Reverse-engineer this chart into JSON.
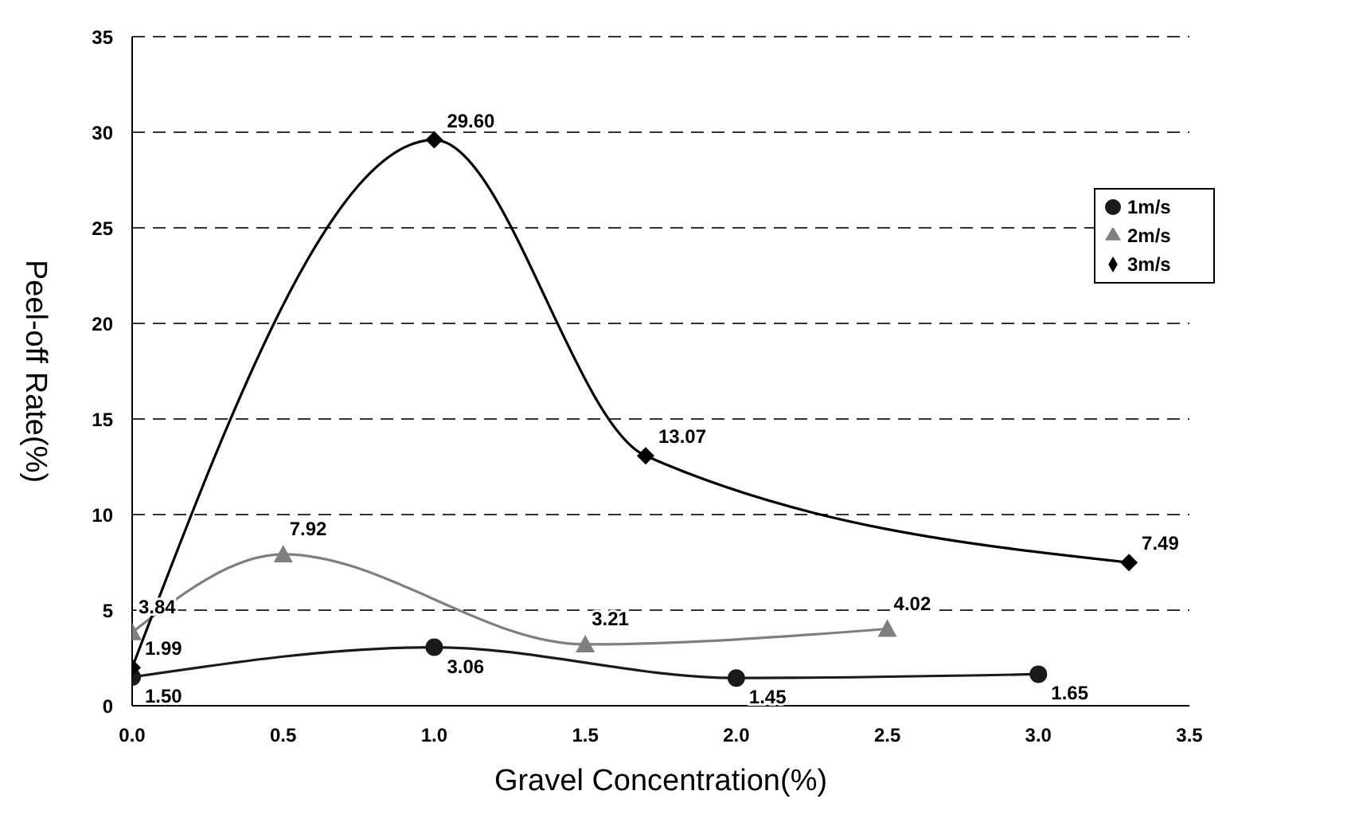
{
  "chart_data": {
    "type": "line",
    "xlabel": "Gravel Concentration(%)",
    "ylabel": "Peel-off Rate(%)",
    "xlim": [
      0,
      3.5
    ],
    "xticks": [
      {
        "value": 0,
        "label": "0.0"
      },
      {
        "value": 0.5,
        "label": "0.5"
      },
      {
        "value": 1,
        "label": "1.0"
      },
      {
        "value": 1.5,
        "label": "1.5"
      },
      {
        "value": 2,
        "label": "2.0"
      },
      {
        "value": 2.5,
        "label": "2.5"
      },
      {
        "value": 3,
        "label": "3.0"
      },
      {
        "value": 3.5,
        "label": "3.5"
      }
    ],
    "ylim": [
      0,
      35
    ],
    "yticks": [
      0,
      5,
      10,
      15,
      20,
      25,
      30,
      35
    ],
    "grid": "y",
    "legend": "right",
    "line_style": "solid",
    "series": [
      {
        "name": "1m/s",
        "color": "#1a1a1a",
        "marker": "circle",
        "x": [
          0,
          1,
          2,
          3
        ],
        "values": [
          1.5,
          3.06,
          1.45,
          1.65
        ],
        "value_labels": [
          "1.50",
          "3.06",
          "1.45",
          "1.65"
        ]
      },
      {
        "name": "2m/s",
        "color": "#7f7f7f",
        "marker": "triangle",
        "x": [
          0,
          0.5,
          1.5,
          2.5
        ],
        "values": [
          3.84,
          7.92,
          3.21,
          4.02
        ],
        "value_labels": [
          "3.84",
          "7.92",
          "3.21",
          "4.02"
        ]
      },
      {
        "name": "3m/s",
        "color": "#000000",
        "marker": "diamond",
        "x": [
          0,
          1,
          1.7,
          3.3
        ],
        "values": [
          1.99,
          29.6,
          13.07,
          7.49
        ],
        "value_labels": [
          "1.99",
          "29.60",
          "13.07",
          "7.49"
        ]
      }
    ]
  }
}
